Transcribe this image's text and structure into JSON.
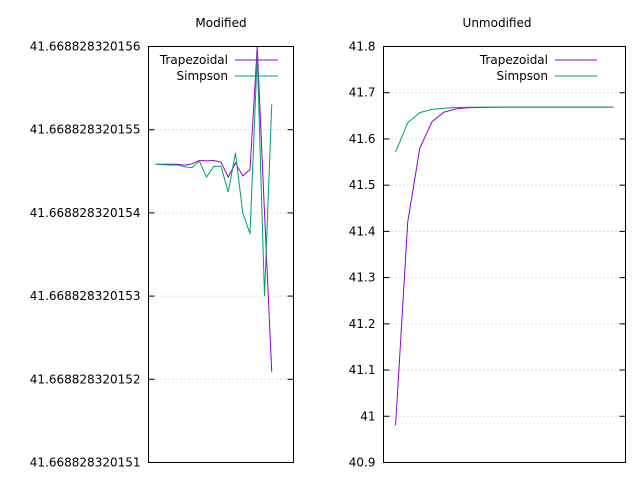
{
  "chart_data": [
    {
      "type": "line",
      "title": "Modified",
      "xlabel": "",
      "ylabel": "",
      "ylim": [
        41.668828320151,
        41.668828320156
      ],
      "yticks": [
        {
          "value": 41.668828320151,
          "label": "41.668828320151"
        },
        {
          "value": 41.668828320152,
          "label": "41.668828320152"
        },
        {
          "value": 41.668828320153,
          "label": "41.668828320153"
        },
        {
          "value": 41.668828320154,
          "label": "41.668828320154"
        },
        {
          "value": 41.668828320155,
          "label": "41.668828320155"
        },
        {
          "value": 41.668828320156,
          "label": "41.668828320156"
        }
      ],
      "ytick_offsets": [
        0,
        1,
        2,
        3,
        4,
        5
      ],
      "grid": true,
      "legend_position": "top-left",
      "xlim": [
        0,
        20
      ],
      "x": [
        1,
        2,
        3,
        4,
        5,
        6,
        7,
        8,
        9,
        10,
        11,
        12,
        13,
        14,
        15,
        16,
        17
      ],
      "series": [
        {
          "name": "Trapezoidal",
          "color": "#9400d3",
          "offsets": [
            3.585,
            3.585,
            3.585,
            3.585,
            3.575,
            3.59,
            3.63,
            3.625,
            3.63,
            3.61,
            3.43,
            3.6,
            3.445,
            3.52,
            5.0,
            3.0,
            1.09
          ]
        },
        {
          "name": "Simpson",
          "color": "#009e73",
          "offsets": [
            3.585,
            3.58,
            3.575,
            3.575,
            3.555,
            3.545,
            3.625,
            3.43,
            3.56,
            3.56,
            3.25,
            3.72,
            3.0,
            2.75,
            4.9,
            2.0,
            4.31
          ]
        }
      ]
    },
    {
      "type": "line",
      "title": "Unmodified",
      "xlabel": "",
      "ylabel": "",
      "ylim": [
        40.9,
        41.8
      ],
      "yticks": [
        "40.9",
        "41",
        "41.1",
        "41.2",
        "41.3",
        "41.4",
        "41.5",
        "41.6",
        "41.7",
        "41.8"
      ],
      "grid": true,
      "legend_position": "top-right",
      "xlim": [
        0,
        20
      ],
      "x": [
        1,
        2,
        3,
        4,
        5,
        6,
        7,
        8,
        9,
        10,
        11,
        12,
        13,
        14,
        15,
        16,
        17,
        18,
        19
      ],
      "series": [
        {
          "name": "Trapezoidal",
          "color": "#9400d3",
          "values": [
            40.98,
            41.42,
            41.58,
            41.637,
            41.658,
            41.665,
            41.6675,
            41.668,
            41.6685,
            41.6688,
            41.6688,
            41.6688,
            41.6688,
            41.6688,
            41.6688,
            41.6688,
            41.6688,
            41.6688,
            41.6688
          ]
        },
        {
          "name": "Simpson",
          "color": "#009e73",
          "values": [
            41.572,
            41.635,
            41.657,
            41.664,
            41.6665,
            41.668,
            41.6685,
            41.6688,
            41.6688,
            41.6688,
            41.6688,
            41.6688,
            41.6688,
            41.6688,
            41.6688,
            41.6688,
            41.6688,
            41.6688,
            41.6688
          ]
        }
      ]
    }
  ]
}
